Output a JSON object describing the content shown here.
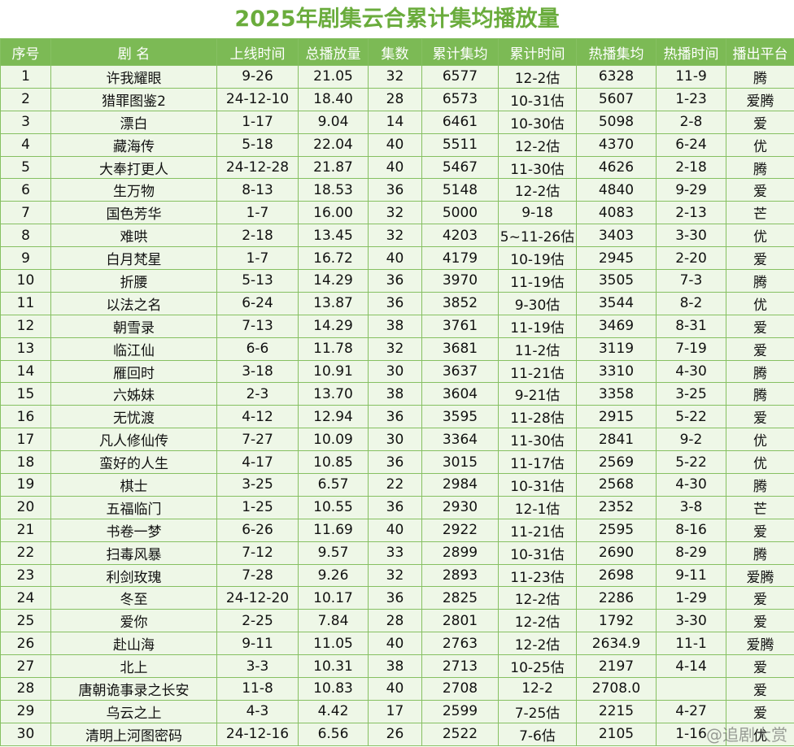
{
  "header": {
    "title": "2025年剧集云合累计集均播放量"
  },
  "table": {
    "columns": [
      "序号",
      "剧 名",
      "上线时间",
      "总播放量",
      "集数",
      "累计集均",
      "累计时间",
      "热播集均",
      "热播时间",
      "播出平台"
    ],
    "rows": [
      [
        "1",
        "许我耀眼",
        "9-26",
        "21.05",
        "32",
        "6577",
        "12-2估",
        "6328",
        "11-9",
        "腾"
      ],
      [
        "2",
        "猎罪图鉴2",
        "24-12-10",
        "18.40",
        "28",
        "6573",
        "10-31估",
        "5607",
        "1-23",
        "爱腾"
      ],
      [
        "3",
        "漂白",
        "1-17",
        "9.04",
        "14",
        "6461",
        "10-30估",
        "5098",
        "2-8",
        "爱"
      ],
      [
        "4",
        "藏海传",
        "5-18",
        "22.04",
        "40",
        "5511",
        "12-2估",
        "4370",
        "6-24",
        "优"
      ],
      [
        "5",
        "大奉打更人",
        "24-12-28",
        "21.87",
        "40",
        "5467",
        "11-30估",
        "4626",
        "2-18",
        "腾"
      ],
      [
        "6",
        "生万物",
        "8-13",
        "18.53",
        "36",
        "5148",
        "12-2估",
        "4840",
        "9-29",
        "爱"
      ],
      [
        "7",
        "国色芳华",
        "1-7",
        "16.00",
        "32",
        "5000",
        "9-18",
        "4083",
        "2-13",
        "芒"
      ],
      [
        "8",
        "难哄",
        "2-18",
        "13.45",
        "32",
        "4203",
        "5~11-26估",
        "3403",
        "3-30",
        "优"
      ],
      [
        "9",
        "白月梵星",
        "1-7",
        "16.72",
        "40",
        "4179",
        "10-19估",
        "2945",
        "2-20",
        "爱"
      ],
      [
        "10",
        "折腰",
        "5-13",
        "14.29",
        "36",
        "3970",
        "11-19估",
        "3505",
        "7-3",
        "腾"
      ],
      [
        "11",
        "以法之名",
        "6-24",
        "13.87",
        "36",
        "3852",
        "9-30估",
        "3544",
        "8-2",
        "优"
      ],
      [
        "12",
        "朝雪录",
        "7-13",
        "14.29",
        "38",
        "3761",
        "11-19估",
        "3469",
        "8-31",
        "爱"
      ],
      [
        "13",
        "临江仙",
        "6-6",
        "11.78",
        "32",
        "3681",
        "11-2估",
        "3119",
        "7-19",
        "爱"
      ],
      [
        "14",
        "雁回时",
        "3-18",
        "10.91",
        "30",
        "3637",
        "11-21估",
        "3310",
        "4-30",
        "腾"
      ],
      [
        "15",
        "六姊妹",
        "2-3",
        "13.70",
        "38",
        "3604",
        "9-21估",
        "3358",
        "3-25",
        "腾"
      ],
      [
        "16",
        "无忧渡",
        "4-12",
        "12.94",
        "36",
        "3595",
        "11-28估",
        "2915",
        "5-22",
        "爱"
      ],
      [
        "17",
        "凡人修仙传",
        "7-27",
        "10.09",
        "30",
        "3364",
        "11-30估",
        "2841",
        "9-2",
        "优"
      ],
      [
        "18",
        "蛮好的人生",
        "4-17",
        "10.85",
        "36",
        "3015",
        "11-17估",
        "2569",
        "5-22",
        "优"
      ],
      [
        "19",
        "棋士",
        "3-25",
        "6.57",
        "22",
        "2984",
        "10-31估",
        "2568",
        "4-30",
        "腾"
      ],
      [
        "20",
        "五福临门",
        "1-25",
        "10.55",
        "36",
        "2930",
        "12-1估",
        "2352",
        "3-8",
        "芒"
      ],
      [
        "21",
        "书卷一梦",
        "6-26",
        "11.69",
        "40",
        "2922",
        "11-21估",
        "2595",
        "8-16",
        "爱"
      ],
      [
        "22",
        "扫毒风暴",
        "7-12",
        "9.57",
        "33",
        "2899",
        "10-31估",
        "2690",
        "8-29",
        "腾"
      ],
      [
        "23",
        "利剑玫瑰",
        "7-28",
        "9.26",
        "32",
        "2893",
        "11-23估",
        "2698",
        "9-11",
        "爱腾"
      ],
      [
        "24",
        "冬至",
        "24-12-20",
        "10.17",
        "36",
        "2825",
        "12-2估",
        "2286",
        "1-29",
        "爱"
      ],
      [
        "25",
        "爱你",
        "2-25",
        "7.84",
        "28",
        "2801",
        "12-2估",
        "1792",
        "3-30",
        "爱"
      ],
      [
        "26",
        "赴山海",
        "9-11",
        "11.05",
        "40",
        "2763",
        "12-2估",
        "2634.9",
        "11-1",
        "爱腾"
      ],
      [
        "27",
        "北上",
        "3-3",
        "10.31",
        "38",
        "2713",
        "10-25估",
        "2197",
        "4-14",
        "爱"
      ],
      [
        "28",
        "唐朝诡事录之长安",
        "11-8",
        "10.83",
        "40",
        "2708",
        "12-2",
        "2708.0",
        null,
        "爱"
      ],
      [
        "29",
        "乌云之上",
        "4-3",
        "4.42",
        "17",
        "2599",
        "7-25估",
        "2215",
        "4-27",
        "爱"
      ],
      [
        "30",
        "清明上河图密码",
        "24-12-16",
        "6.56",
        "26",
        "2522",
        "7-6估",
        "2105",
        "1-16",
        "优"
      ]
    ]
  },
  "watermark": "@追剧大赏"
}
